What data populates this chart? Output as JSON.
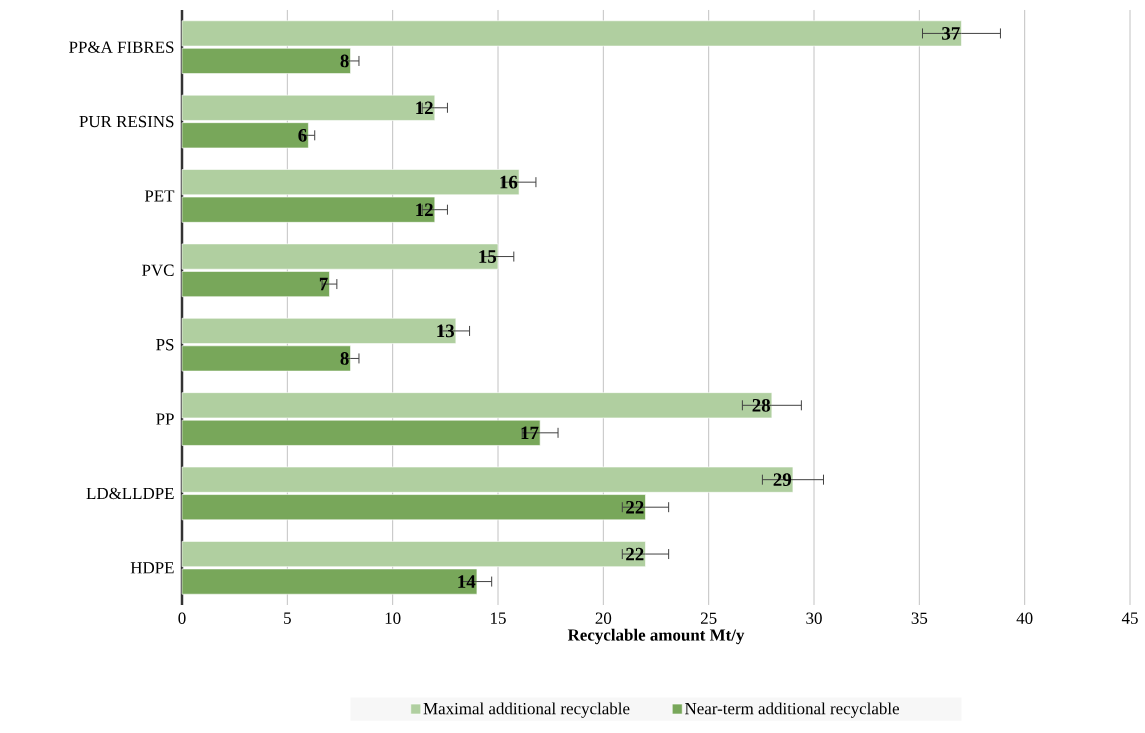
{
  "chart_data": {
    "type": "bar",
    "orientation": "horizontal",
    "xlabel": "Recyclable amount Mt/y",
    "categories": [
      "PP&A FIBRES",
      "PUR RESINS",
      "PET",
      "PVC",
      "PS",
      "PP",
      "LD&LLDPE",
      "HDPE"
    ],
    "series": [
      {
        "name": "Maximal additional  recyclable",
        "color": "#b0cfa0",
        "values": [
          37,
          12,
          16,
          15,
          13,
          28,
          29,
          22
        ],
        "errors": [
          1.85,
          0.6,
          0.8,
          0.75,
          0.65,
          1.4,
          1.45,
          1.1
        ]
      },
      {
        "name": "Near-term additional recyclable",
        "color": "#78a75a",
        "values": [
          8,
          6,
          12,
          7,
          8,
          17,
          22,
          14
        ],
        "errors": [
          0.4,
          0.3,
          0.6,
          0.35,
          0.4,
          0.85,
          1.1,
          0.7
        ]
      }
    ],
    "xlim": [
      0,
      45
    ],
    "xticks": [
      0,
      5,
      10,
      15,
      20,
      25,
      30,
      35,
      40,
      45
    ],
    "grid": "x",
    "legend": "bottom",
    "data_labels": true
  }
}
